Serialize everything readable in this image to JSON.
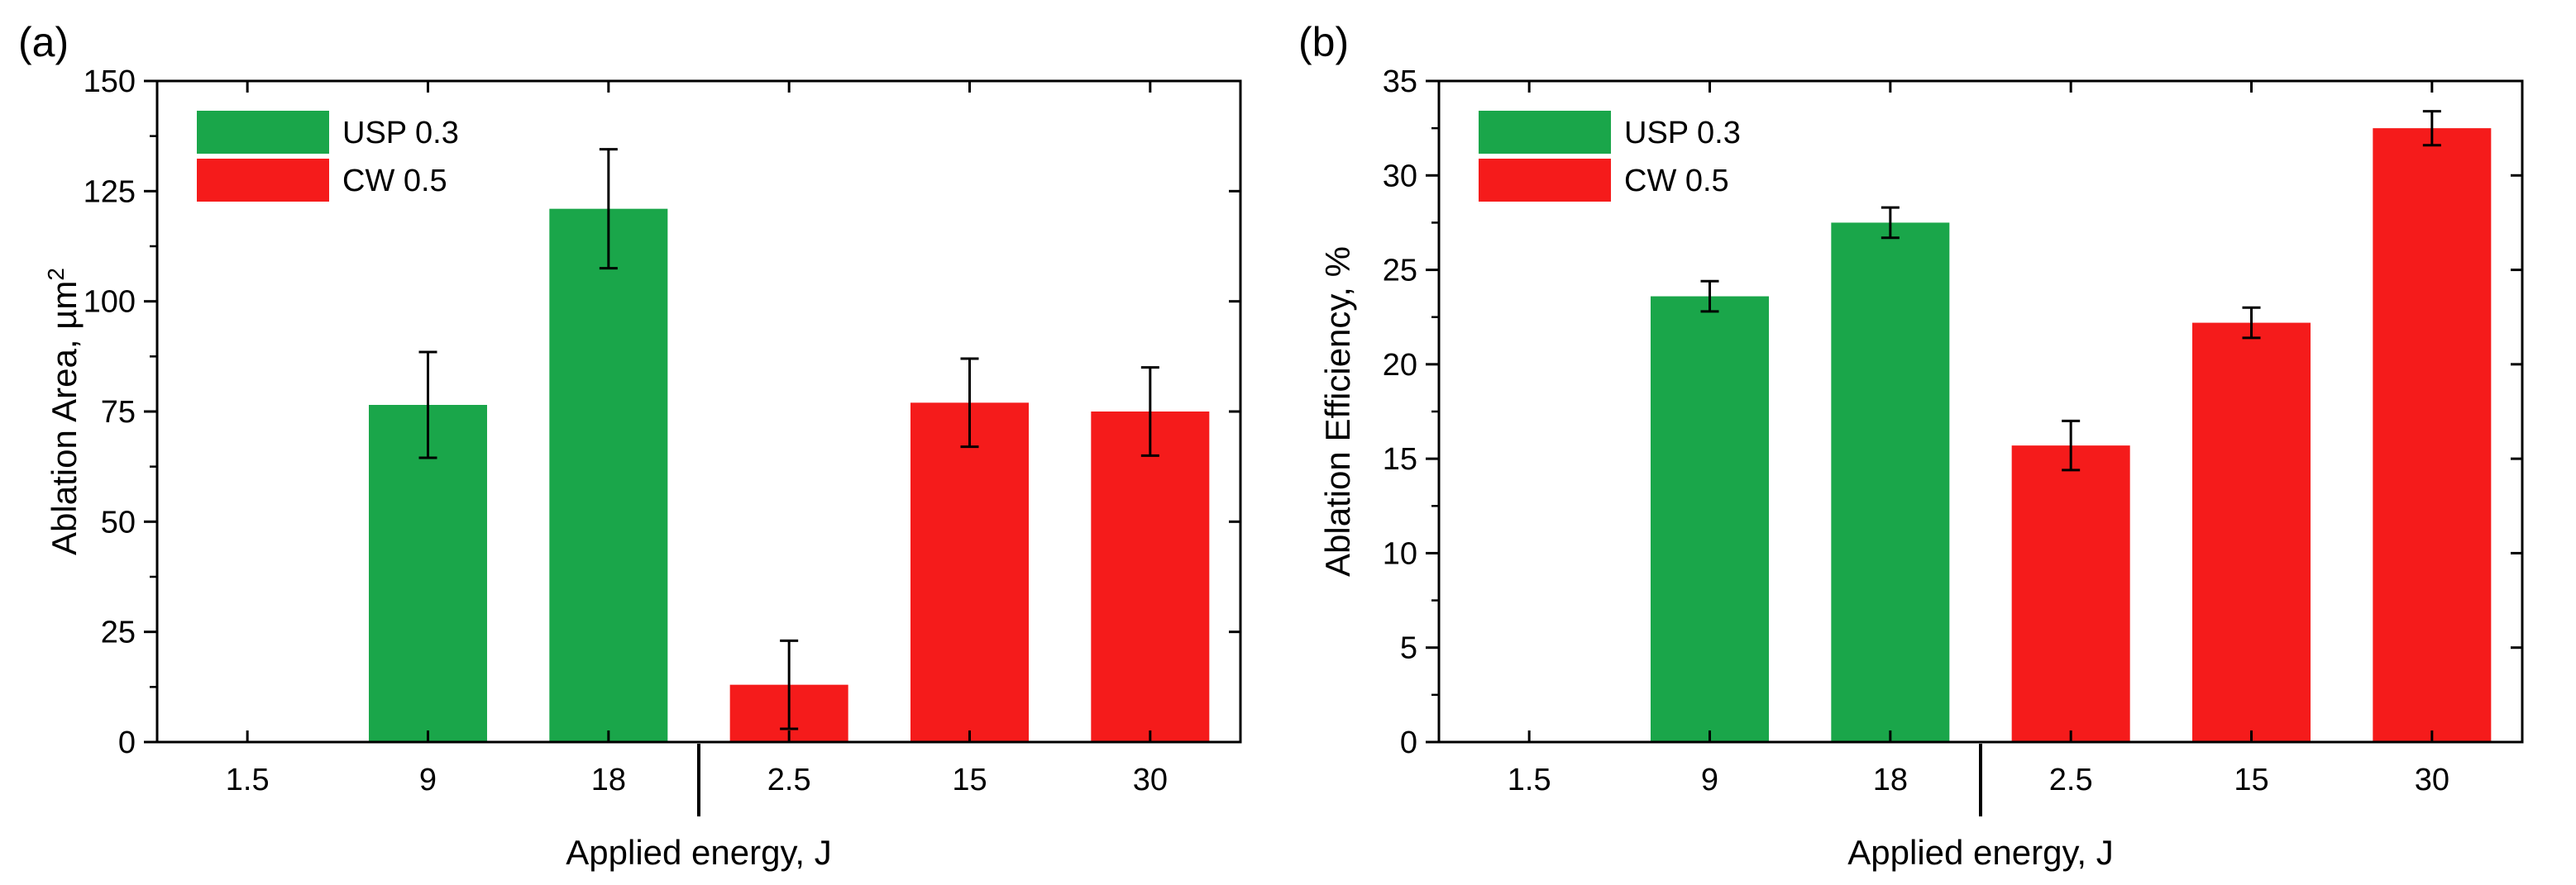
{
  "colors": {
    "series1": "#1aa64a",
    "series2": "#f51b1b",
    "frame": "#000000",
    "text": "#000000"
  },
  "chart_data": [
    {
      "type": "bar",
      "panel": "(a)",
      "xlabel": "Applied energy, J",
      "ylabel": "Ablation Area, µm",
      "ylabel_sup": "2",
      "ylim": [
        0,
        150
      ],
      "yticks": [
        0,
        25,
        50,
        75,
        100,
        125,
        150
      ],
      "categories": [
        "1.5",
        "9",
        "18",
        "2.5",
        "15",
        "30"
      ],
      "category_series": [
        0,
        0,
        0,
        1,
        1,
        1
      ],
      "values": [
        0,
        76.5,
        121,
        13,
        77,
        75
      ],
      "errors": [
        null,
        12,
        13.5,
        10,
        10,
        10
      ],
      "group_separator_after": 2,
      "legend": {
        "position": "top-left"
      },
      "series": [
        {
          "name": "USP 0.3",
          "color": "#1aa64a"
        },
        {
          "name": "CW 0.5",
          "color": "#f51b1b"
        }
      ],
      "grid": false
    },
    {
      "type": "bar",
      "panel": "(b)",
      "xlabel": "Applied energy, J",
      "ylabel": "Ablation Efficiency, %",
      "ylabel_sup": "",
      "ylim": [
        0,
        35
      ],
      "yticks": [
        0,
        5,
        10,
        15,
        20,
        25,
        30,
        35
      ],
      "categories": [
        "1.5",
        "9",
        "18",
        "2.5",
        "15",
        "30"
      ],
      "category_series": [
        0,
        0,
        0,
        1,
        1,
        1
      ],
      "values": [
        0,
        23.6,
        27.5,
        15.7,
        22.2,
        32.5
      ],
      "errors": [
        null,
        0.8,
        0.8,
        1.3,
        0.8,
        0.9
      ],
      "group_separator_after": 2,
      "legend": {
        "position": "top-left"
      },
      "series": [
        {
          "name": "USP 0.3",
          "color": "#1aa64a"
        },
        {
          "name": "CW 0.5",
          "color": "#f51b1b"
        }
      ],
      "grid": false
    }
  ]
}
